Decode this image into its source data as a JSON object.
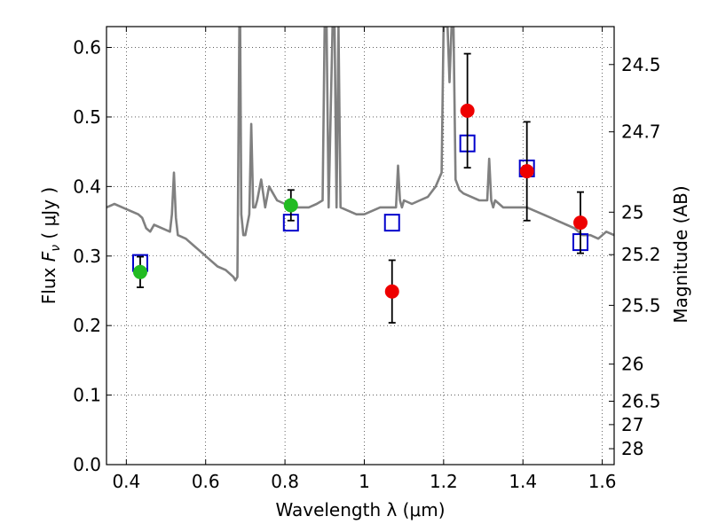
{
  "chart_data": {
    "type": "scatter",
    "xlabel": "Wavelength  λ (μm)",
    "ylabel": "Flux  F_ν  ( μJy )",
    "y2label": "Magnitude (AB)",
    "xlim": [
      0.35,
      1.63
    ],
    "ylim": [
      0.0,
      0.63
    ],
    "grid": true,
    "x_ticks": [
      {
        "value": 0.4,
        "label": "0.4"
      },
      {
        "value": 0.6,
        "label": "0.6"
      },
      {
        "value": 0.8,
        "label": "0.8"
      },
      {
        "value": 1.0,
        "label": "1"
      },
      {
        "value": 1.2,
        "label": "1.2"
      },
      {
        "value": 1.4,
        "label": "1.4"
      },
      {
        "value": 1.6,
        "label": "1.6"
      }
    ],
    "y_ticks": [
      {
        "value": 0.0,
        "label": "0.0"
      },
      {
        "value": 0.1,
        "label": "0.1"
      },
      {
        "value": 0.2,
        "label": "0.2"
      },
      {
        "value": 0.3,
        "label": "0.3"
      },
      {
        "value": 0.4,
        "label": "0.4"
      },
      {
        "value": 0.5,
        "label": "0.5"
      },
      {
        "value": 0.6,
        "label": "0.6"
      }
    ],
    "y2_ticks": [
      {
        "value": 24.5,
        "label": "24.5"
      },
      {
        "value": 24.7,
        "label": "24.7"
      },
      {
        "value": 25.0,
        "label": "25"
      },
      {
        "value": 25.2,
        "label": "25.2"
      },
      {
        "value": 25.5,
        "label": "25.5"
      },
      {
        "value": 26.0,
        "label": "26"
      },
      {
        "value": 26.5,
        "label": "26.5"
      },
      {
        "value": 27.0,
        "label": "27"
      },
      {
        "value": 28.0,
        "label": "28"
      }
    ],
    "series": [
      {
        "kind": "line",
        "color": "#808080",
        "x": [
          0.35,
          0.37,
          0.39,
          0.41,
          0.43,
          0.44,
          0.45,
          0.46,
          0.47,
          0.49,
          0.51,
          0.515,
          0.52,
          0.525,
          0.53,
          0.55,
          0.57,
          0.59,
          0.61,
          0.63,
          0.65,
          0.67,
          0.675,
          0.68,
          0.685,
          0.687,
          0.69,
          0.695,
          0.7,
          0.71,
          0.715,
          0.72,
          0.725,
          0.73,
          0.74,
          0.75,
          0.76,
          0.77,
          0.78,
          0.8,
          0.82,
          0.84,
          0.86,
          0.88,
          0.895,
          0.9,
          0.905,
          0.91,
          0.92,
          0.925,
          0.93,
          0.935,
          0.94,
          0.96,
          0.98,
          1.0,
          1.02,
          1.04,
          1.06,
          1.08,
          1.085,
          1.09,
          1.095,
          1.1,
          1.12,
          1.14,
          1.16,
          1.18,
          1.195,
          1.2,
          1.21,
          1.215,
          1.22,
          1.225,
          1.23,
          1.24,
          1.25,
          1.27,
          1.29,
          1.31,
          1.315,
          1.32,
          1.325,
          1.33,
          1.35,
          1.37,
          1.39,
          1.41,
          1.43,
          1.45,
          1.47,
          1.49,
          1.51,
          1.53,
          1.55,
          1.57,
          1.59,
          1.61,
          1.63
        ],
        "y": [
          0.37,
          0.375,
          0.37,
          0.365,
          0.36,
          0.355,
          0.34,
          0.335,
          0.345,
          0.34,
          0.335,
          0.36,
          0.42,
          0.355,
          0.33,
          0.325,
          0.315,
          0.305,
          0.295,
          0.285,
          0.28,
          0.27,
          0.265,
          0.27,
          0.63,
          0.63,
          0.36,
          0.33,
          0.33,
          0.36,
          0.49,
          0.37,
          0.37,
          0.38,
          0.41,
          0.37,
          0.4,
          0.39,
          0.38,
          0.375,
          0.37,
          0.37,
          0.37,
          0.375,
          0.38,
          0.63,
          0.63,
          0.37,
          0.63,
          0.63,
          0.37,
          0.63,
          0.37,
          0.365,
          0.36,
          0.36,
          0.365,
          0.37,
          0.37,
          0.37,
          0.43,
          0.38,
          0.37,
          0.38,
          0.375,
          0.38,
          0.385,
          0.4,
          0.42,
          0.63,
          0.63,
          0.55,
          0.63,
          0.63,
          0.41,
          0.395,
          0.39,
          0.385,
          0.38,
          0.38,
          0.44,
          0.38,
          0.37,
          0.38,
          0.37,
          0.37,
          0.37,
          0.37,
          0.365,
          0.36,
          0.355,
          0.35,
          0.345,
          0.34,
          0.33,
          0.33,
          0.325,
          0.335,
          0.33
        ]
      },
      {
        "kind": "squares",
        "color": "#0000cc",
        "x": [
          0.435,
          0.815,
          1.07,
          1.26,
          1.41,
          1.545
        ],
        "y": [
          0.29,
          0.348,
          0.348,
          0.462,
          0.426,
          0.32
        ]
      },
      {
        "kind": "points",
        "color": "#22bb22",
        "x": [
          0.435,
          0.815
        ],
        "y": [
          0.277,
          0.373
        ],
        "yerr": [
          0.022,
          0.022
        ]
      },
      {
        "kind": "points",
        "color": "#ee0000",
        "x": [
          1.07,
          1.26,
          1.41,
          1.545
        ],
        "y": [
          0.249,
          0.509,
          0.422,
          0.348
        ],
        "yerr": [
          0.045,
          0.082,
          0.071,
          0.044
        ]
      }
    ]
  }
}
